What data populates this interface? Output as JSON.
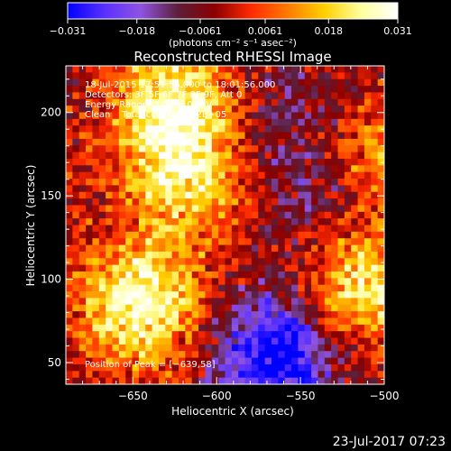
{
  "chart_data": {
    "type": "heatmap",
    "title": "Reconstructed RHESSI Image",
    "xlabel": "Heliocentric X (arcsec)",
    "ylabel": "Heliocentric Y (arcsec)",
    "xlim": [
      -690,
      -500
    ],
    "ylim": [
      37,
      228
    ],
    "xticks": [
      -650,
      -600,
      -550,
      -500
    ],
    "xtick_labels": [
      "−650",
      "−600",
      "−550",
      "−500"
    ],
    "yticks": [
      50,
      100,
      150,
      200
    ],
    "ytick_labels": [
      "50",
      "100",
      "150",
      "200"
    ],
    "colorbar": {
      "min": -0.031,
      "max": 0.031,
      "ticks": [
        -0.031,
        -0.018,
        -0.0061,
        0.0061,
        0.018,
        0.031
      ],
      "tick_labels": [
        "−0.031",
        "−0.018",
        "−0.0061",
        "0.0061",
        "0.018",
        "0.031"
      ],
      "unit_label": "(photons cm⁻² s⁻¹ asec⁻²)"
    },
    "annotations": [
      "18‑Jul‑2015 17:51:56.000 to 18:01:56.000",
      "Detectors: 3F 5F 6F 7F 8F 9F, Att 0",
      "Energy Range: 3.0 – 6.0 keV",
      "Clean    Total counts: 1.42E+05"
    ],
    "peak_label": "Position of Peak = [−639,58]",
    "peak": {
      "x": -639,
      "y": 58
    },
    "bright_sources": [
      {
        "x": -645,
        "y": 85,
        "intensity": 0.031
      },
      {
        "x": -625,
        "y": 205,
        "intensity": 0.028
      },
      {
        "x": -620,
        "y": 160,
        "intensity": 0.022
      },
      {
        "x": -512,
        "y": 95,
        "intensity": 0.026
      },
      {
        "x": -505,
        "y": 170,
        "intensity": 0.018
      }
    ],
    "dim_sources": [
      {
        "x": -565,
        "y": 55,
        "intensity": -0.031
      },
      {
        "x": -535,
        "y": 150,
        "intensity": -0.012
      },
      {
        "x": -560,
        "y": 200,
        "intensity": -0.009
      }
    ]
  },
  "footer": {
    "date": "23‑Jul‑2017 07:23"
  },
  "colors": {
    "background": "#000000",
    "foreground": "#ffffff"
  },
  "colormap": [
    "#0000ff",
    "#5a30ff",
    "#8e54e0",
    "#5c1e3a",
    "#8a0000",
    "#ff2a00",
    "#ff7a00",
    "#ffd000",
    "#ffffa0",
    "#ffffff"
  ]
}
